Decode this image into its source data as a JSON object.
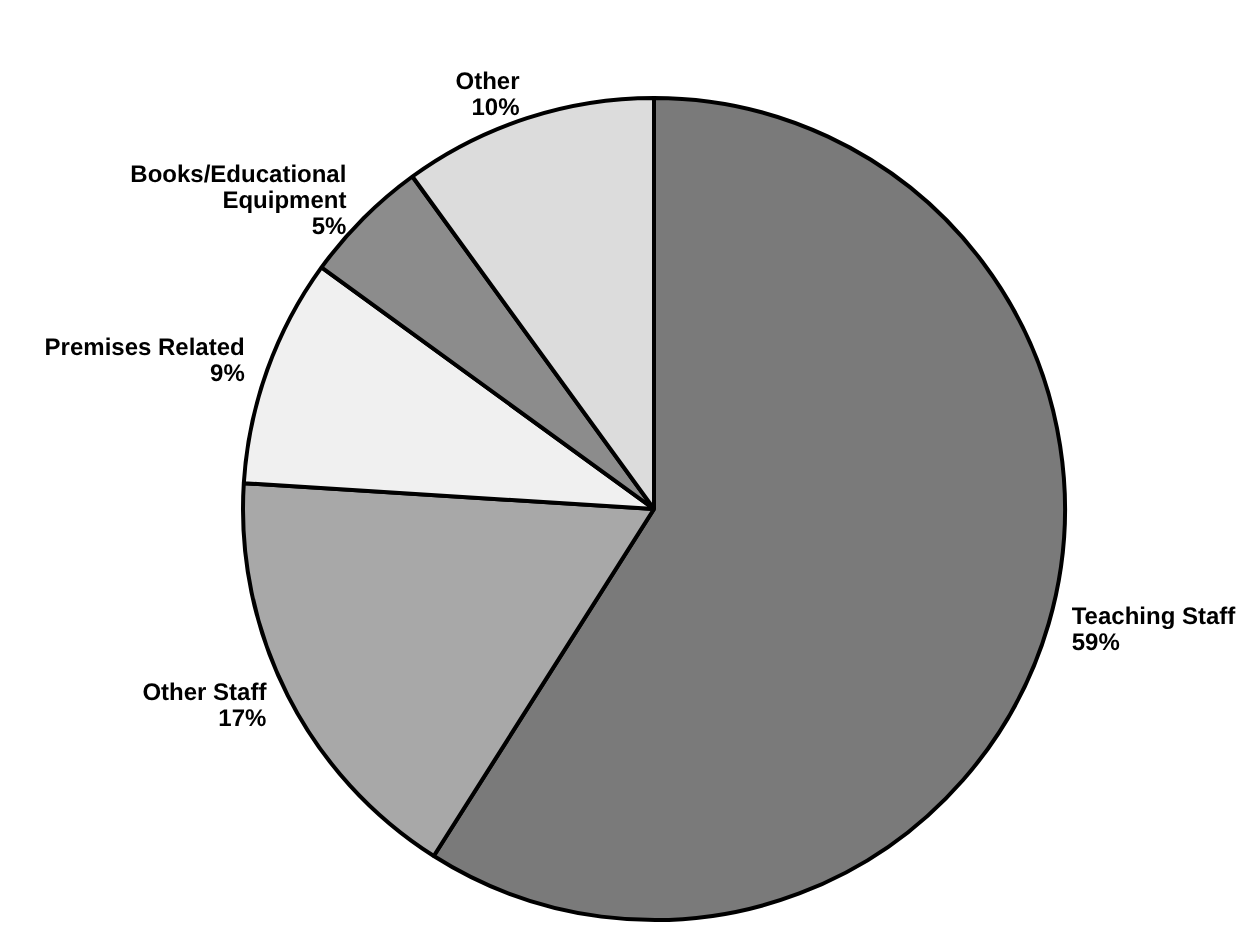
{
  "chart_data": {
    "type": "pie",
    "categories": [
      "Teaching Staff",
      "Other Staff",
      "Premises Related",
      "Books/Educational Equipment",
      "Other"
    ],
    "values": [
      59,
      17,
      9,
      5,
      10
    ],
    "colors": [
      "#7a7a7a",
      "#a8a8a8",
      "#f0f0f0",
      "#8c8c8c",
      "#dcdcdc"
    ],
    "value_labels": [
      "59%",
      "17%",
      "9%",
      "5%",
      "10%"
    ],
    "legend": false
  }
}
